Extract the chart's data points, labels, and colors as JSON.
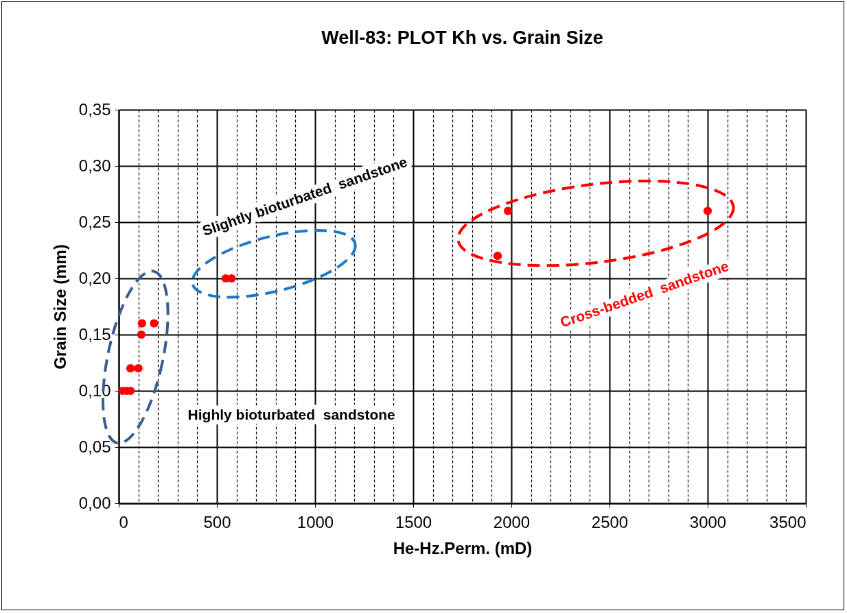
{
  "chart_data": {
    "type": "scatter",
    "title": "Well-83: PLOT Kh vs. Grain Size",
    "xlabel": "He-Hz.Perm. (mD)",
    "ylabel": "Grain Size (mm)",
    "annotations": [
      "Highly bioturbated  sandstone",
      "Slightly bioturbated  sandstone",
      "Cross-bedded  sandstone"
    ],
    "x": [
      20,
      40,
      60,
      60,
      100,
      115,
      118,
      180,
      545,
      575,
      1930,
      1983,
      3000
    ],
    "values": [
      0.1,
      0.1,
      0.1,
      0.12,
      0.12,
      0.15,
      0.16,
      0.16,
      0.2,
      0.2,
      0.22,
      0.26,
      0.26
    ],
    "color": "#ff0000",
    "marker": "circle",
    "grid": true,
    "legend": false,
    "xlim": [
      0,
      3500
    ],
    "xticks": [
      0,
      {
        "value": 100,
        "label": null
      },
      {
        "value": 200,
        "label": null
      },
      {
        "value": 300,
        "label": null
      },
      {
        "value": 400,
        "label": null
      },
      500,
      {
        "value": 600,
        "label": null
      },
      {
        "value": 700,
        "label": null
      },
      {
        "value": 800,
        "label": null
      },
      {
        "value": 900,
        "label": null
      },
      1000,
      {
        "value": 1100,
        "label": null
      },
      {
        "value": 1200,
        "label": null
      },
      {
        "value": 1300,
        "label": null
      },
      {
        "value": 1400,
        "label": null
      },
      1500,
      {
        "value": 1600,
        "label": null
      },
      {
        "value": 1700,
        "label": null
      },
      {
        "value": 1800,
        "label": null
      },
      {
        "value": 1900,
        "label": null
      },
      2000,
      {
        "value": 2100,
        "label": null
      },
      {
        "value": 2200,
        "label": null
      },
      {
        "value": 2300,
        "label": null
      },
      {
        "value": 2400,
        "label": null
      },
      2500,
      {
        "value": 2600,
        "label": null
      },
      {
        "value": 2700,
        "label": null
      },
      {
        "value": 2800,
        "label": null
      },
      {
        "value": 2900,
        "label": null
      },
      3000,
      {
        "value": 3100,
        "label": null
      },
      {
        "value": 3200,
        "label": null
      },
      {
        "value": 3300,
        "label": null
      },
      {
        "value": 3400,
        "label": null
      },
      3500
    ],
    "ylim": [
      0,
      0.35
    ],
    "yticks": [
      {
        "value": 0,
        "label": "0,00"
      },
      {
        "value": 0.05,
        "label": "0,05"
      },
      {
        "value": 0.1,
        "label": "0,10"
      },
      {
        "value": 0.15,
        "label": "0,15"
      },
      {
        "value": 0.2,
        "label": "0,20"
      },
      {
        "value": 0.25,
        "label": "0,25"
      },
      {
        "value": 0.3,
        "label": "0,30"
      },
      {
        "value": 0.35,
        "label": "0,35"
      }
    ]
  }
}
